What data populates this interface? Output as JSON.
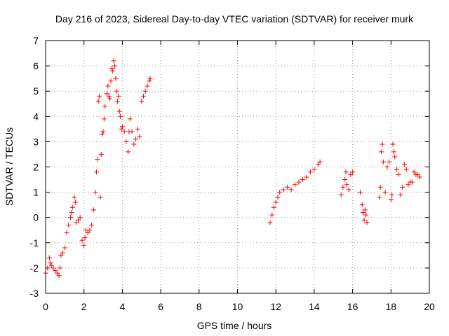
{
  "chart_data": {
    "type": "scatter",
    "title": "Day 216 of 2023, Sidereal Day-to-day VTEC variation (SDTVAR) for receiver murk",
    "xlabel": "GPS time / hours",
    "ylabel": "SDTVAR / TECUs",
    "xlim": [
      0,
      20
    ],
    "ylim": [
      -3,
      7
    ],
    "xticks": [
      "0",
      "2",
      "4",
      "6",
      "8",
      "10",
      "12",
      "14",
      "16",
      "18",
      "20"
    ],
    "yticks": [
      "-3",
      "-2",
      "-1",
      "0",
      "1",
      "2",
      "3",
      "4",
      "5",
      "6",
      "7"
    ],
    "grid": true,
    "marker": "+",
    "series": [
      {
        "name": "SDTVAR",
        "color": "#ff0000",
        "x": [
          0.0,
          0.1,
          0.2,
          0.25,
          0.3,
          0.4,
          0.5,
          0.6,
          0.7,
          0.75,
          0.8,
          0.9,
          1.0,
          1.1,
          1.2,
          1.3,
          1.35,
          1.4,
          1.5,
          1.55,
          1.6,
          1.7,
          1.8,
          1.9,
          2.0,
          2.05,
          2.1,
          2.2,
          2.3,
          2.4,
          2.5,
          2.6,
          2.65,
          2.7,
          2.75,
          2.8,
          2.85,
          2.9,
          2.95,
          3.0,
          3.05,
          3.1,
          3.2,
          3.25,
          3.3,
          3.35,
          3.4,
          3.45,
          3.5,
          3.55,
          3.6,
          3.65,
          3.7,
          3.75,
          3.8,
          3.85,
          3.9,
          3.95,
          4.0,
          4.1,
          4.2,
          4.3,
          4.35,
          4.4,
          4.5,
          4.6,
          4.7,
          4.8,
          4.9,
          5.0,
          5.1,
          5.2,
          5.3,
          5.4,
          5.45,
          11.7,
          11.8,
          11.9,
          12.0,
          12.1,
          12.2,
          12.4,
          12.6,
          12.8,
          13.0,
          13.2,
          13.4,
          13.6,
          13.8,
          14.0,
          14.2,
          14.3,
          15.4,
          15.5,
          15.6,
          15.65,
          15.7,
          15.8,
          15.9,
          16.0,
          16.4,
          16.5,
          16.55,
          16.6,
          16.65,
          16.7,
          16.75,
          17.4,
          17.45,
          17.5,
          17.55,
          17.6,
          17.7,
          17.8,
          17.9,
          18.0,
          18.05,
          18.1,
          18.15,
          18.2,
          18.3,
          18.4,
          18.5,
          18.6,
          18.7,
          18.8,
          18.9,
          19.0,
          19.1,
          19.2,
          19.3,
          19.4,
          19.5
        ],
        "values": [
          -2.2,
          -2.0,
          -1.6,
          -1.8,
          -1.9,
          -2.0,
          -2.1,
          -2.2,
          -2.3,
          -2.0,
          -1.5,
          -1.4,
          -1.2,
          -0.6,
          -0.3,
          0.0,
          0.2,
          0.4,
          0.8,
          0.6,
          -0.2,
          -0.1,
          0.0,
          -0.9,
          -1.1,
          -0.8,
          -0.5,
          -0.6,
          -0.5,
          -0.3,
          0.3,
          1.0,
          1.8,
          2.3,
          4.6,
          4.8,
          0.8,
          2.5,
          3.3,
          3.4,
          3.9,
          4.4,
          4.9,
          5.2,
          4.8,
          4.7,
          5.4,
          5.9,
          5.8,
          6.2,
          6.0,
          5.5,
          5.0,
          4.6,
          4.8,
          4.2,
          4.0,
          3.5,
          3.6,
          3.4,
          3.0,
          2.6,
          3.4,
          3.9,
          3.4,
          2.9,
          3.1,
          3.5,
          3.2,
          4.6,
          4.8,
          5.0,
          5.2,
          5.4,
          5.5,
          -0.2,
          0.1,
          0.4,
          0.6,
          0.8,
          1.0,
          1.1,
          1.2,
          1.1,
          1.3,
          1.4,
          1.5,
          1.6,
          1.8,
          1.9,
          2.1,
          2.2,
          0.9,
          1.2,
          1.5,
          1.8,
          1.3,
          1.1,
          1.7,
          1.8,
          1.0,
          0.5,
          0.2,
          -0.1,
          0.3,
          0.1,
          -0.2,
          0.8,
          1.2,
          2.6,
          2.9,
          2.2,
          1.0,
          2.0,
          2.2,
          0.7,
          0.9,
          2.9,
          2.6,
          2.4,
          1.9,
          1.7,
          0.9,
          1.2,
          2.1,
          1.9,
          1.3,
          1.4,
          1.4,
          1.8,
          1.7,
          1.7,
          1.6
        ]
      }
    ]
  }
}
